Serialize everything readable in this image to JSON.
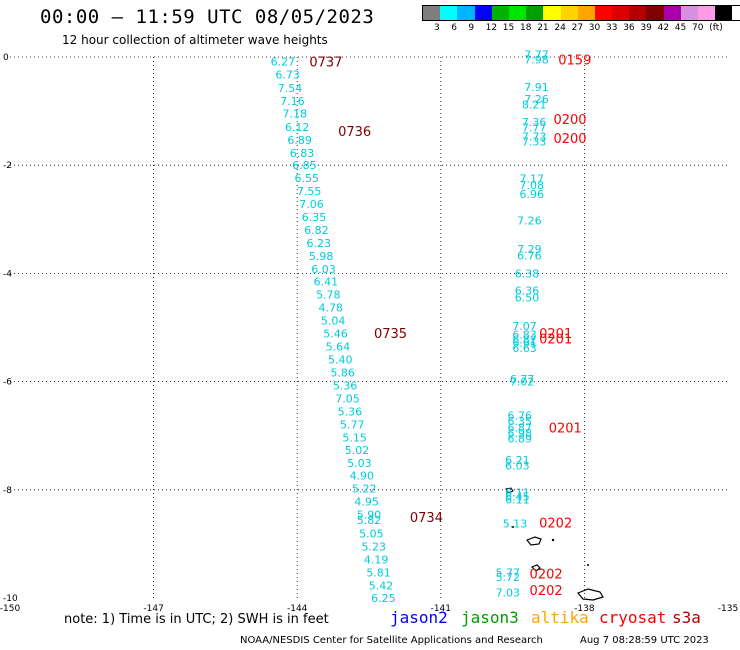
{
  "header": {
    "title": "00:00 – 11:59 UTC 08/05/2023",
    "subtitle": "12 hour collection of altimeter wave heights"
  },
  "colorbar": {
    "colors": [
      "#7f7f7f",
      "#00ffff",
      "#00b4ff",
      "#0000ff",
      "#00b400",
      "#00e600",
      "#00a000",
      "#ffff00",
      "#ffd200",
      "#ffa500",
      "#ff0000",
      "#dc0000",
      "#b40000",
      "#800000",
      "#aa00aa",
      "#d78fe0",
      "#ff9be6",
      "#000000"
    ],
    "labels": [
      "3",
      "6",
      "9",
      "12",
      "15",
      "18",
      "21",
      "24",
      "27",
      "30",
      "33",
      "36",
      "39",
      "42",
      "45",
      "70",
      "(ft)"
    ]
  },
  "map": {
    "x_ticks": [
      "-150",
      "-147",
      "-144",
      "-141",
      "-138",
      "-135"
    ],
    "y_ticks": [
      "0",
      "-2",
      "-4",
      "-6",
      "-8",
      "-10"
    ],
    "x_range": [
      -150,
      -135
    ],
    "y_range": [
      -10,
      0
    ]
  },
  "observations": [
    {
      "lon": -144.3,
      "lat": -0.08,
      "v": "6.27"
    },
    {
      "lon": -144.2,
      "lat": -0.32,
      "v": "6.73"
    },
    {
      "lon": -144.15,
      "lat": -0.57,
      "v": "7.54"
    },
    {
      "lon": -144.1,
      "lat": -0.81,
      "v": "7.16"
    },
    {
      "lon": -144.05,
      "lat": -1.04,
      "v": "7.18"
    },
    {
      "lon": -144.0,
      "lat": -1.29,
      "v": "6.12"
    },
    {
      "lon": -143.95,
      "lat": -1.53,
      "v": "6.89"
    },
    {
      "lon": -143.9,
      "lat": -1.77,
      "v": "6.83"
    },
    {
      "lon": -143.85,
      "lat": -2.0,
      "v": "6.85"
    },
    {
      "lon": -143.8,
      "lat": -2.24,
      "v": "6.55"
    },
    {
      "lon": -143.75,
      "lat": -2.48,
      "v": "7.55"
    },
    {
      "lon": -143.7,
      "lat": -2.72,
      "v": "7.06"
    },
    {
      "lon": -143.65,
      "lat": -2.96,
      "v": "6.35"
    },
    {
      "lon": -143.6,
      "lat": -3.2,
      "v": "6.82"
    },
    {
      "lon": -143.55,
      "lat": -3.44,
      "v": "6.23"
    },
    {
      "lon": -143.5,
      "lat": -3.68,
      "v": "5.98"
    },
    {
      "lon": -143.45,
      "lat": -3.92,
      "v": "6.03"
    },
    {
      "lon": -143.4,
      "lat": -4.15,
      "v": "6.41"
    },
    {
      "lon": -143.35,
      "lat": -4.39,
      "v": "5.78"
    },
    {
      "lon": -143.3,
      "lat": -4.63,
      "v": "4.78"
    },
    {
      "lon": -143.25,
      "lat": -4.87,
      "v": "5.04"
    },
    {
      "lon": -143.2,
      "lat": -5.11,
      "v": "5.46"
    },
    {
      "lon": -143.15,
      "lat": -5.35,
      "v": "5.64"
    },
    {
      "lon": -143.1,
      "lat": -5.59,
      "v": "5.40"
    },
    {
      "lon": -143.05,
      "lat": -5.83,
      "v": "5.86"
    },
    {
      "lon": -143.0,
      "lat": -6.07,
      "v": "5.36"
    },
    {
      "lon": -142.95,
      "lat": -6.31,
      "v": "7.05"
    },
    {
      "lon": -142.9,
      "lat": -6.55,
      "v": "5.36"
    },
    {
      "lon": -142.85,
      "lat": -6.79,
      "v": "5.77"
    },
    {
      "lon": -142.8,
      "lat": -7.03,
      "v": "5.15"
    },
    {
      "lon": -142.75,
      "lat": -7.26,
      "v": "5.02"
    },
    {
      "lon": -142.7,
      "lat": -7.5,
      "v": "5.03"
    },
    {
      "lon": -142.65,
      "lat": -7.74,
      "v": "4.90"
    },
    {
      "lon": -142.6,
      "lat": -7.98,
      "v": "5.22"
    },
    {
      "lon": -142.55,
      "lat": -8.22,
      "v": "4.95"
    },
    {
      "lon": -142.5,
      "lat": -8.46,
      "v": "5.90"
    },
    {
      "lon": -142.5,
      "lat": -8.56,
      "v": "5.82"
    },
    {
      "lon": -142.45,
      "lat": -8.81,
      "v": "5.05"
    },
    {
      "lon": -142.4,
      "lat": -9.05,
      "v": "5.23"
    },
    {
      "lon": -142.35,
      "lat": -9.29,
      "v": "4.19"
    },
    {
      "lon": -142.3,
      "lat": -9.53,
      "v": "5.81"
    },
    {
      "lon": -142.25,
      "lat": -9.77,
      "v": "5.42"
    },
    {
      "lon": -142.2,
      "lat": -10.0,
      "v": "6.25"
    },
    {
      "lon": -139.0,
      "lat": 0.05,
      "v": "7.77"
    },
    {
      "lon": -139.0,
      "lat": -0.05,
      "v": "7.98"
    },
    {
      "lon": -139.0,
      "lat": -0.55,
      "v": "7.91"
    },
    {
      "lon": -139.0,
      "lat": -0.78,
      "v": "7.26"
    },
    {
      "lon": -139.05,
      "lat": -0.88,
      "v": "8.21"
    },
    {
      "lon": -139.05,
      "lat": -1.2,
      "v": "7.36"
    },
    {
      "lon": -139.05,
      "lat": -1.3,
      "v": "7.77"
    },
    {
      "lon": -139.05,
      "lat": -1.47,
      "v": "7.73"
    },
    {
      "lon": -139.05,
      "lat": -1.56,
      "v": "7.33"
    },
    {
      "lon": -139.1,
      "lat": -2.25,
      "v": "7.17"
    },
    {
      "lon": -139.1,
      "lat": -2.37,
      "v": "7.08"
    },
    {
      "lon": -139.1,
      "lat": -2.53,
      "v": "6.96"
    },
    {
      "lon": -139.15,
      "lat": -3.02,
      "v": "7.26"
    },
    {
      "lon": -139.15,
      "lat": -3.55,
      "v": "7.29"
    },
    {
      "lon": -139.15,
      "lat": -3.67,
      "v": "6.76"
    },
    {
      "lon": -139.2,
      "lat": -4.0,
      "v": "6.38"
    },
    {
      "lon": -139.2,
      "lat": -4.32,
      "v": "6.36"
    },
    {
      "lon": -139.2,
      "lat": -4.45,
      "v": "6.50"
    },
    {
      "lon": -139.25,
      "lat": -4.97,
      "v": "7.07"
    },
    {
      "lon": -139.25,
      "lat": -5.13,
      "v": "6.83"
    },
    {
      "lon": -139.25,
      "lat": -5.22,
      "v": "6.82"
    },
    {
      "lon": -139.25,
      "lat": -5.28,
      "v": "6.61"
    },
    {
      "lon": -139.25,
      "lat": -5.38,
      "v": "6.63"
    },
    {
      "lon": -139.3,
      "lat": -5.95,
      "v": "6.77"
    },
    {
      "lon": -139.3,
      "lat": -6.0,
      "v": "7.02"
    },
    {
      "lon": -139.35,
      "lat": -6.63,
      "v": "6.76"
    },
    {
      "lon": -139.35,
      "lat": -6.73,
      "v": "6.35"
    },
    {
      "lon": -139.35,
      "lat": -6.85,
      "v": "6.87"
    },
    {
      "lon": -139.35,
      "lat": -6.95,
      "v": "6.98"
    },
    {
      "lon": -139.35,
      "lat": -7.05,
      "v": "6.89"
    },
    {
      "lon": -139.4,
      "lat": -7.45,
      "v": "6.21"
    },
    {
      "lon": -139.4,
      "lat": -7.55,
      "v": "6.03"
    },
    {
      "lon": -139.4,
      "lat": -8.05,
      "v": "6.11"
    },
    {
      "lon": -139.4,
      "lat": -8.12,
      "v": "6.45"
    },
    {
      "lon": -139.4,
      "lat": -8.18,
      "v": "6.11"
    },
    {
      "lon": -139.45,
      "lat": -8.62,
      "v": "5.13"
    },
    {
      "lon": -139.6,
      "lat": -9.53,
      "v": "5.77"
    },
    {
      "lon": -139.6,
      "lat": -9.61,
      "v": "5.72"
    },
    {
      "lon": -139.6,
      "lat": -9.9,
      "v": "7.03"
    }
  ],
  "time_labels": [
    {
      "lon": -143.4,
      "lat": -0.08,
      "t": "0737",
      "c": "#800000"
    },
    {
      "lon": -142.8,
      "lat": -1.37,
      "t": "0736",
      "c": "#800000"
    },
    {
      "lon": -142.05,
      "lat": -5.1,
      "t": "0735",
      "c": "#800000"
    },
    {
      "lon": -141.3,
      "lat": -8.5,
      "t": "0734",
      "c": "#800000"
    },
    {
      "lon": -138.2,
      "lat": -0.05,
      "t": "0159",
      "c": "#ff0000"
    },
    {
      "lon": -138.3,
      "lat": -1.15,
      "t": "0200",
      "c": "#ff0000"
    },
    {
      "lon": -138.3,
      "lat": -1.5,
      "t": "0200",
      "c": "#ff0000"
    },
    {
      "lon": -138.6,
      "lat": -5.1,
      "t": "0201",
      "c": "#ff0000"
    },
    {
      "lon": -138.6,
      "lat": -5.2,
      "t": "0201",
      "c": "#ff0000"
    },
    {
      "lon": -138.4,
      "lat": -6.85,
      "t": "0201",
      "c": "#ff0000"
    },
    {
      "lon": -138.6,
      "lat": -8.6,
      "t": "0202",
      "c": "#ff0000"
    },
    {
      "lon": -138.8,
      "lat": -9.55,
      "t": "0202",
      "c": "#ff0000"
    },
    {
      "lon": -138.8,
      "lat": -9.85,
      "t": "0202",
      "c": "#ff0000"
    }
  ],
  "footer": {
    "note": "note:  1) Time is in UTC;  2) SWH is in feet",
    "satellites": [
      {
        "name": "jason2",
        "color": "#0000ff"
      },
      {
        "name": "jason3",
        "color": "#00a000"
      },
      {
        "name": "altika",
        "color": "#ffa500"
      },
      {
        "name": "cryosat",
        "color": "#ff0000"
      },
      {
        "name": "s3a",
        "color": "#b40000"
      }
    ],
    "credit": "NOAA/NESDIS Center for Satellite Applications and Research",
    "timestamp": "Aug  7 08:28:59 UTC 2023"
  }
}
